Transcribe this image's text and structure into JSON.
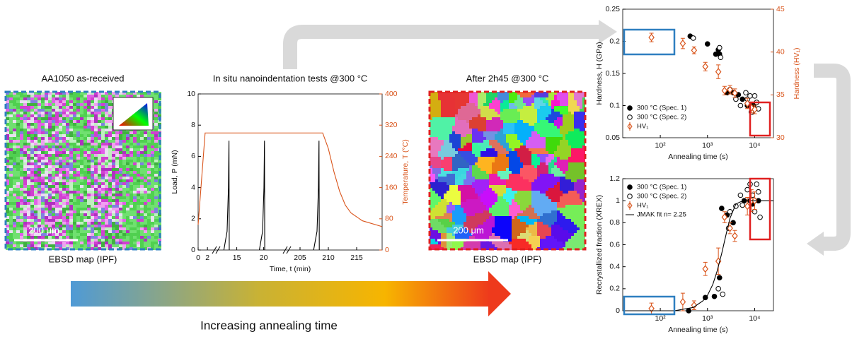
{
  "panels": [
    {
      "title": "AA1050 as-received",
      "caption": "EBSD map (IPF)",
      "scale_bar": "200 μm"
    },
    {
      "title": "After 2h45 @300 °C",
      "caption": "EBSD map (IPF)",
      "scale_bar": "200 μm"
    }
  ],
  "arrow_label": "Increasing annealing time",
  "chart_data": [
    {
      "type": "line",
      "title": "In situ nanoindentation tests @300 °C",
      "x_label": "Time, t (min)",
      "y_label": "Load, P (mN)",
      "y2_label": "Temperature, T (°C)",
      "xsegments": [
        [
          0,
          3.5
        ],
        [
          11.5,
          24
        ],
        [
          203,
          219.5
        ]
      ],
      "xticks": [
        0,
        2,
        15,
        20,
        205,
        210,
        215
      ],
      "ylim": [
        0,
        10
      ],
      "yticks": [
        0,
        2,
        4,
        6,
        8,
        10
      ],
      "y2lim": [
        0,
        400
      ],
      "y2ticks": [
        0,
        80,
        160,
        240,
        320,
        400
      ],
      "y2color": "#d95319",
      "series": [
        {
          "color": "#000000",
          "x": [
            12.6,
            13.2,
            13.45,
            13.55,
            13.6,
            null,
            19.2,
            19.8,
            20.05,
            20.15,
            20.2,
            null,
            207.4,
            208.0,
            208.25,
            208.35,
            208.4
          ],
          "values": [
            0,
            1.2,
            4,
            7,
            0,
            null,
            0,
            1.2,
            4,
            7,
            0,
            null,
            0,
            1.2,
            4,
            7,
            0
          ]
        },
        {
          "color": "#d95319",
          "axis": "y2",
          "x": [
            0,
            1.5,
            3.5,
            11.5,
            24,
            203,
            209,
            210,
            211,
            212,
            213,
            214,
            216,
            219.5
          ],
          "values": [
            65,
            300,
            300,
            300,
            300,
            300,
            300,
            260,
            200,
            150,
            115,
            95,
            75,
            60
          ]
        }
      ]
    },
    {
      "type": "scatter",
      "xscale": "log",
      "x_label": "Annealing time (s)",
      "y_label": "Hardness, H (GPa)",
      "y2_label": "Hardness (HV₁)",
      "xlim": [
        16,
        25000
      ],
      "xticks": [
        {
          "value": 100,
          "label": "10²"
        },
        {
          "value": 1000,
          "label": "10³"
        },
        {
          "value": 10000,
          "label": "10⁴"
        }
      ],
      "ylim": [
        0.05,
        0.25
      ],
      "yticks": [
        0.05,
        0.1,
        0.15,
        0.2,
        0.25
      ],
      "y2lim": [
        30,
        45
      ],
      "y2ticks": [
        30,
        35,
        40,
        45
      ],
      "y2color": "#d95319",
      "legend": "lower left",
      "series": [
        {
          "name": "300 °C (Spec. 1)",
          "color": "#000000",
          "marker": "filled-circle",
          "x": [
            430,
            1000,
            1500,
            1800,
            1700,
            2600,
            3500,
            4500,
            5500,
            7000,
            8500,
            9500
          ],
          "values": [
            0.208,
            0.196,
            0.18,
            0.18,
            0.187,
            0.12,
            0.12,
            0.117,
            0.11,
            0.1,
            0.1,
            0.1
          ]
        },
        {
          "name": "300 °C (Spec. 2)",
          "color": "#000000",
          "marker": "open-circle",
          "x": [
            500,
            1800,
            1900,
            3000,
            4000,
            5000,
            6500,
            7000,
            8000,
            9000,
            10000,
            11000,
            12000,
            8500
          ],
          "values": [
            0.205,
            0.19,
            0.175,
            0.125,
            0.11,
            0.1,
            0.12,
            0.11,
            0.115,
            0.09,
            0.115,
            0.105,
            0.095,
            0.09
          ]
        },
        {
          "name": "HV₁",
          "color": "#d95319",
          "marker": "diamond",
          "axis": "y2",
          "x": [
            65,
            300,
            520,
            900,
            1700,
            2300,
            3000,
            3800,
            7000,
            8500,
            10000
          ],
          "values": [
            41.7,
            41,
            40.2,
            38.3,
            37.7,
            35.5,
            35.6,
            35.2,
            34,
            33.5,
            33.3
          ],
          "errors": [
            0.5,
            0.6,
            0.4,
            0.5,
            0.8,
            0.5,
            0.5,
            0.5,
            0.6,
            0.6,
            0.5
          ]
        }
      ]
    },
    {
      "type": "scatter",
      "xscale": "log",
      "x_label": "Annealing time (s)",
      "y_label": "Recrystallized fraction (XREX)",
      "xlim": [
        16,
        25000
      ],
      "xticks": [
        {
          "value": 100,
          "label": "10²"
        },
        {
          "value": 1000,
          "label": "10³"
        },
        {
          "value": 10000,
          "label": "10⁴"
        }
      ],
      "ylim": [
        0,
        1.2
      ],
      "yticks": [
        0,
        0.2,
        0.4,
        0.6,
        0.8,
        1,
        1.2
      ],
      "legend": "upper left",
      "series": [
        {
          "name": "300 °C (Spec. 1)",
          "color": "#000000",
          "marker": "filled-circle",
          "x": [
            400,
            900,
            1400,
            1800,
            2000,
            2600,
            3500,
            6000,
            8000,
            9000,
            12000
          ],
          "values": [
            0,
            0.12,
            0.13,
            0.3,
            0.93,
            0.87,
            0.8,
            1.0,
            1.0,
            0.97,
            1.0
          ]
        },
        {
          "name": "300 °C (Spec. 2)",
          "color": "#000000",
          "marker": "open-circle",
          "x": [
            1700,
            2100,
            2800,
            3000,
            4000,
            5000,
            5500,
            7000,
            8000,
            9000,
            10000,
            11000,
            12000,
            13000
          ],
          "values": [
            0.2,
            0.15,
            0.75,
            0.9,
            0.95,
            1.05,
            0.96,
            1.1,
            1.15,
            1.05,
            0.9,
            1.15,
            1.08,
            0.85
          ]
        },
        {
          "name": "HV₁",
          "color": "#d95319",
          "marker": "diamond",
          "x": [
            65,
            300,
            520,
            900,
            1700,
            2300,
            3000,
            3800,
            7000,
            8500,
            10000
          ],
          "values": [
            0.02,
            0.08,
            0.05,
            0.38,
            0.45,
            0.85,
            0.75,
            0.68,
            0.95,
            1.0,
            1.0
          ],
          "errors": [
            0.05,
            0.08,
            0.04,
            0.06,
            0.12,
            0.05,
            0.05,
            0.05,
            0.08,
            0.1,
            0.08
          ]
        },
        {
          "name": "JMAK fit n= 2.25",
          "color": "#000000",
          "marker": "line",
          "x": [
            16,
            200,
            500,
            800,
            1000,
            1300,
            1600,
            2000,
            2500,
            3000,
            4000,
            5000,
            7000,
            10000,
            25000
          ],
          "values": [
            0,
            0,
            0.03,
            0.09,
            0.14,
            0.24,
            0.36,
            0.52,
            0.7,
            0.84,
            0.97,
            0.99,
            1,
            1,
            1
          ]
        }
      ]
    }
  ]
}
